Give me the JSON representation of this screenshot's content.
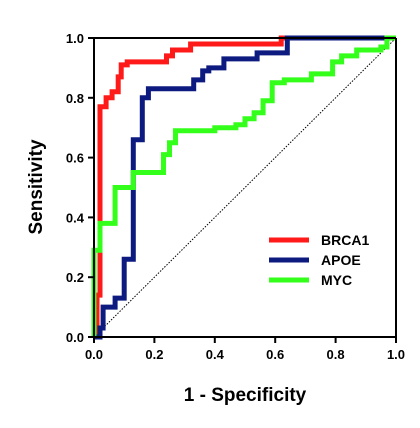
{
  "chart_data": {
    "type": "line",
    "xlabel": "1 - Specificity",
    "ylabel": "Sensitivity",
    "xlim": [
      0.0,
      1.0
    ],
    "ylim": [
      0.0,
      1.0
    ],
    "xticks": [
      "0.0",
      "0.2",
      "0.4",
      "0.6",
      "0.8",
      "1.0"
    ],
    "yticks": [
      "0.0",
      "0.2",
      "0.4",
      "0.6",
      "0.8",
      "1.0"
    ],
    "grid": false,
    "legend_position": "bottom-right",
    "reference_line": {
      "style": "dotted",
      "from": [
        0,
        0
      ],
      "to": [
        1,
        1
      ]
    },
    "series": [
      {
        "name": "BRCA1",
        "color": "#ff1a1a",
        "points": [
          [
            0,
            0
          ],
          [
            0.01,
            0
          ],
          [
            0.01,
            0.14
          ],
          [
            0.02,
            0.14
          ],
          [
            0.02,
            0.77
          ],
          [
            0.04,
            0.77
          ],
          [
            0.04,
            0.8
          ],
          [
            0.06,
            0.8
          ],
          [
            0.06,
            0.82
          ],
          [
            0.08,
            0.82
          ],
          [
            0.08,
            0.87
          ],
          [
            0.09,
            0.87
          ],
          [
            0.09,
            0.91
          ],
          [
            0.11,
            0.91
          ],
          [
            0.11,
            0.92
          ],
          [
            0.24,
            0.92
          ],
          [
            0.24,
            0.94
          ],
          [
            0.26,
            0.94
          ],
          [
            0.26,
            0.96
          ],
          [
            0.32,
            0.96
          ],
          [
            0.32,
            0.98
          ],
          [
            0.62,
            0.98
          ],
          [
            0.62,
            1.0
          ],
          [
            1.0,
            1.0
          ]
        ]
      },
      {
        "name": "APOE",
        "color": "#0d1a80",
        "points": [
          [
            0,
            0
          ],
          [
            0.02,
            0
          ],
          [
            0.02,
            0.03
          ],
          [
            0.03,
            0.03
          ],
          [
            0.03,
            0.1
          ],
          [
            0.07,
            0.1
          ],
          [
            0.07,
            0.13
          ],
          [
            0.1,
            0.13
          ],
          [
            0.1,
            0.26
          ],
          [
            0.13,
            0.26
          ],
          [
            0.13,
            0.66
          ],
          [
            0.16,
            0.66
          ],
          [
            0.16,
            0.8
          ],
          [
            0.18,
            0.8
          ],
          [
            0.18,
            0.83
          ],
          [
            0.33,
            0.83
          ],
          [
            0.33,
            0.86
          ],
          [
            0.36,
            0.86
          ],
          [
            0.36,
            0.89
          ],
          [
            0.38,
            0.89
          ],
          [
            0.38,
            0.9
          ],
          [
            0.43,
            0.9
          ],
          [
            0.43,
            0.93
          ],
          [
            0.54,
            0.93
          ],
          [
            0.54,
            0.95
          ],
          [
            0.64,
            0.95
          ],
          [
            0.64,
            1.0
          ],
          [
            1.0,
            1.0
          ]
        ]
      },
      {
        "name": "MYC",
        "color": "#33ff1a",
        "points": [
          [
            0,
            0
          ],
          [
            0,
            0.29
          ],
          [
            0.02,
            0.29
          ],
          [
            0.02,
            0.38
          ],
          [
            0.07,
            0.38
          ],
          [
            0.07,
            0.5
          ],
          [
            0.13,
            0.5
          ],
          [
            0.13,
            0.55
          ],
          [
            0.23,
            0.55
          ],
          [
            0.23,
            0.61
          ],
          [
            0.25,
            0.61
          ],
          [
            0.25,
            0.65
          ],
          [
            0.27,
            0.65
          ],
          [
            0.27,
            0.69
          ],
          [
            0.4,
            0.69
          ],
          [
            0.4,
            0.7
          ],
          [
            0.47,
            0.7
          ],
          [
            0.47,
            0.71
          ],
          [
            0.5,
            0.71
          ],
          [
            0.5,
            0.73
          ],
          [
            0.53,
            0.73
          ],
          [
            0.53,
            0.75
          ],
          [
            0.56,
            0.75
          ],
          [
            0.56,
            0.79
          ],
          [
            0.59,
            0.79
          ],
          [
            0.59,
            0.85
          ],
          [
            0.63,
            0.85
          ],
          [
            0.63,
            0.86
          ],
          [
            0.72,
            0.86
          ],
          [
            0.72,
            0.88
          ],
          [
            0.79,
            0.88
          ],
          [
            0.79,
            0.92
          ],
          [
            0.82,
            0.92
          ],
          [
            0.82,
            0.94
          ],
          [
            0.87,
            0.94
          ],
          [
            0.87,
            0.96
          ],
          [
            0.95,
            0.96
          ],
          [
            0.95,
            0.97
          ],
          [
            0.97,
            0.97
          ],
          [
            0.97,
            1.0
          ],
          [
            1.0,
            1.0
          ]
        ]
      }
    ]
  }
}
